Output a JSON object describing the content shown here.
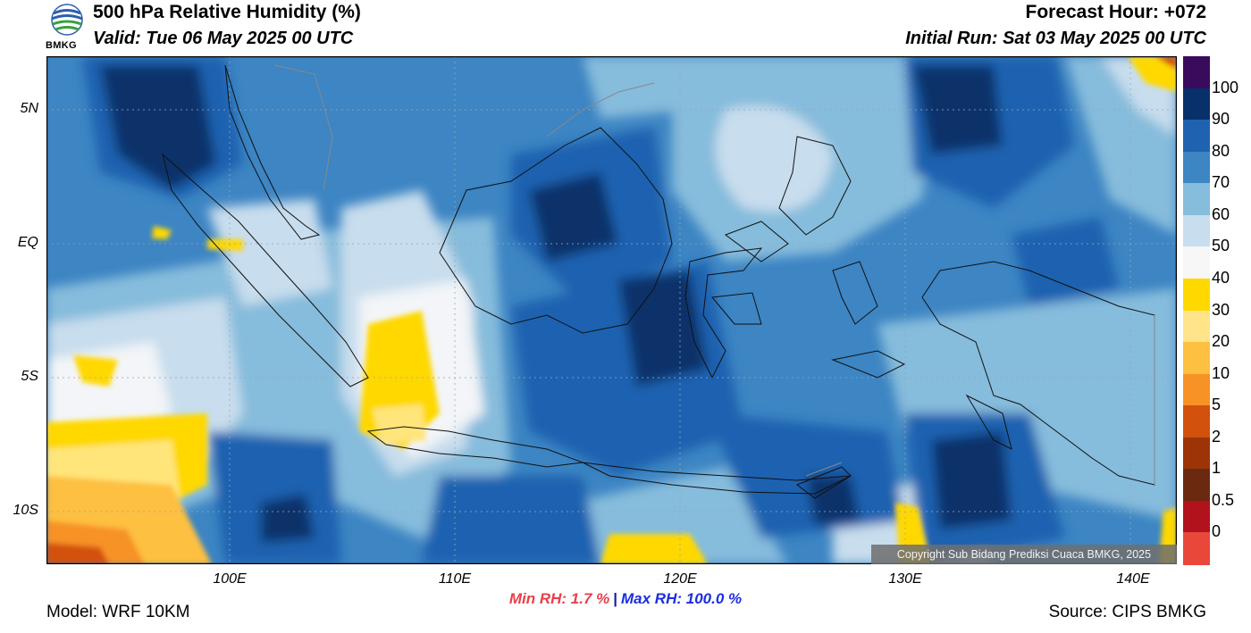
{
  "header": {
    "logo_text": "BMKG",
    "title": "500 hPa Relative Humidity (%)",
    "valid": "Valid: Tue 06 May 2025 00 UTC",
    "forecast_hour": "Forecast Hour: +072",
    "initial_run": "Initial Run: Sat 03 May 2025 00 UTC"
  },
  "map": {
    "lat_labels": [
      "5N",
      "EQ",
      "5S",
      "10S"
    ],
    "lon_labels": [
      "100E",
      "110E",
      "120E",
      "130E",
      "140E"
    ],
    "colors": {
      "rh_90_100": "#08306b",
      "rh_80_90": "#1f62b0",
      "rh_70_80": "#3d85c3",
      "rh_60_70": "#86bcdc",
      "rh_50_60": "#c8dded",
      "rh_40_50": "#f3f5f8",
      "rh_30_40": "#ffd800",
      "rh_20_30": "#ffe57a",
      "rh_10_20": "#fdc040",
      "rh_5_10": "#f79226",
      "rh_2_5": "#d2510d"
    }
  },
  "colorbar": {
    "labels": [
      "100",
      "90",
      "80",
      "70",
      "60",
      "50",
      "40",
      "30",
      "20",
      "10",
      "5",
      "2",
      "1",
      "0.5",
      "0"
    ],
    "colors": [
      "#3a0a5c",
      "#08306b",
      "#1f62b0",
      "#3d85c3",
      "#86bcdc",
      "#c8dded",
      "#f7f7f7",
      "#ffd800",
      "#ffe48a",
      "#fdc040",
      "#f79226",
      "#d2510d",
      "#9c3408",
      "#6b2a10",
      "#b1121c",
      "#e8473a"
    ]
  },
  "copyright": "Copyright Sub Bidang Prediksi Cuaca BMKG, 2025",
  "stats": {
    "min_label": "Min RH:   1.7 %",
    "separator": "|",
    "max_label": "Max RH: 100.0 %"
  },
  "footer": {
    "model": "Model: WRF 10KM",
    "source": "Source: CIPS BMKG"
  }
}
